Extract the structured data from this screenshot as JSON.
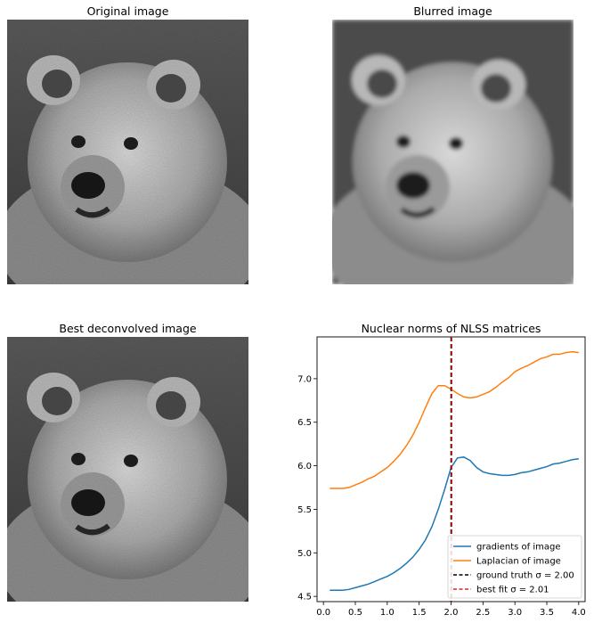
{
  "panels": {
    "original": {
      "title": "Original image"
    },
    "blurred": {
      "title": "Blurred image"
    },
    "deconvolved": {
      "title": "Best deconvolved image"
    }
  },
  "chart_data": {
    "type": "line",
    "title": "Nuclear norms of NLSS matrices",
    "xlabel": "",
    "ylabel": "",
    "xlim": [
      -0.1,
      4.1
    ],
    "ylim": [
      4.44,
      7.48
    ],
    "xticks": [
      0.0,
      0.5,
      1.0,
      1.5,
      2.0,
      2.5,
      3.0,
      3.5,
      4.0
    ],
    "xtick_labels": [
      "0.0",
      "0.5",
      "1.0",
      "1.5",
      "2.0",
      "2.5",
      "3.0",
      "3.5",
      "4.0"
    ],
    "yticks": [
      4.5,
      5.0,
      5.5,
      6.0,
      6.5,
      7.0
    ],
    "ytick_labels": [
      "4.5",
      "5.0",
      "5.5",
      "6.0",
      "6.5",
      "7.0"
    ],
    "grid": false,
    "legend_position": "lower-right",
    "series": [
      {
        "name": "gradients of image",
        "color": "#1f77b4",
        "x": [
          0.1,
          0.2,
          0.3,
          0.4,
          0.5,
          0.6,
          0.7,
          0.8,
          0.9,
          1.0,
          1.1,
          1.2,
          1.3,
          1.4,
          1.5,
          1.6,
          1.7,
          1.8,
          1.9,
          2.0,
          2.1,
          2.2,
          2.3,
          2.4,
          2.5,
          2.6,
          2.7,
          2.8,
          2.9,
          3.0,
          3.1,
          3.2,
          3.3,
          3.4,
          3.5,
          3.6,
          3.7,
          3.8,
          3.9,
          4.0
        ],
        "y": [
          4.57,
          4.57,
          4.57,
          4.58,
          4.6,
          4.62,
          4.64,
          4.67,
          4.7,
          4.73,
          4.77,
          4.82,
          4.88,
          4.95,
          5.04,
          5.15,
          5.3,
          5.5,
          5.73,
          5.98,
          6.09,
          6.1,
          6.06,
          5.98,
          5.93,
          5.91,
          5.9,
          5.89,
          5.89,
          5.9,
          5.92,
          5.93,
          5.95,
          5.97,
          5.99,
          6.02,
          6.03,
          6.05,
          6.07,
          6.08
        ]
      },
      {
        "name": "Laplacian of image",
        "color": "#ff7f0e",
        "x": [
          0.1,
          0.2,
          0.3,
          0.4,
          0.5,
          0.6,
          0.7,
          0.8,
          0.9,
          1.0,
          1.1,
          1.2,
          1.3,
          1.4,
          1.5,
          1.6,
          1.7,
          1.8,
          1.9,
          2.0,
          2.1,
          2.2,
          2.3,
          2.4,
          2.5,
          2.6,
          2.7,
          2.8,
          2.9,
          3.0,
          3.1,
          3.2,
          3.3,
          3.4,
          3.5,
          3.6,
          3.7,
          3.8,
          3.9,
          4.0
        ],
        "y": [
          5.74,
          5.74,
          5.74,
          5.75,
          5.78,
          5.81,
          5.85,
          5.88,
          5.93,
          5.98,
          6.05,
          6.13,
          6.23,
          6.35,
          6.5,
          6.67,
          6.83,
          6.92,
          6.92,
          6.88,
          6.83,
          6.79,
          6.78,
          6.79,
          6.82,
          6.85,
          6.9,
          6.96,
          7.01,
          7.08,
          7.12,
          7.15,
          7.19,
          7.23,
          7.25,
          7.28,
          7.28,
          7.3,
          7.31,
          7.3
        ]
      }
    ],
    "vlines": [
      {
        "x": 2.0,
        "color": "#000000",
        "style": "dashed",
        "label": "ground truth σ = 2.00"
      },
      {
        "x": 2.01,
        "color": "#d62728",
        "style": "dashed",
        "label": "best fit σ = 2.01"
      }
    ]
  }
}
